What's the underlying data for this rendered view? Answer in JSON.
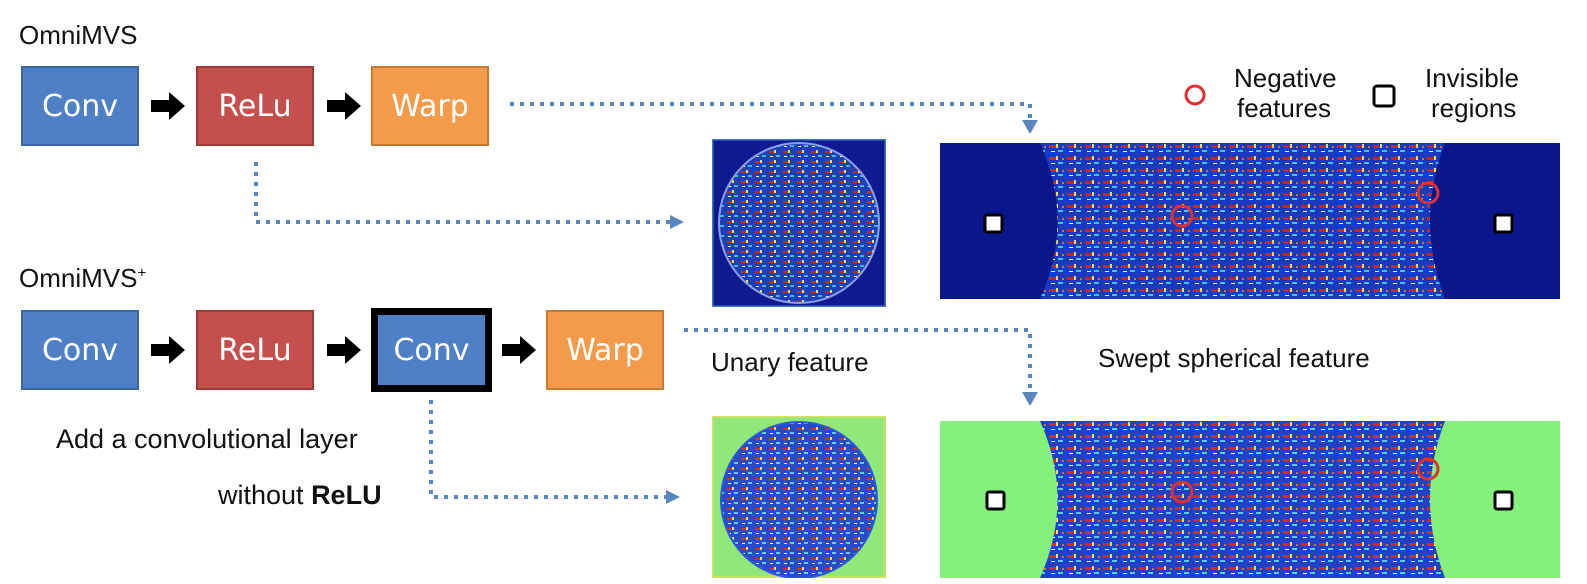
{
  "top_section": {
    "title": "OmniMVS",
    "blocks": [
      "Conv",
      "ReLu",
      "Warp"
    ]
  },
  "bottom_section": {
    "title": "OmniMVS",
    "title_superscript": "+",
    "blocks": [
      "Conv",
      "ReLu",
      "Conv",
      "Warp"
    ],
    "note_line1": "Add a convolutional layer",
    "note_line2_prefix": "without ",
    "note_line2_bold": "ReLU"
  },
  "captions": {
    "unary": "Unary feature",
    "swept": "Swept spherical feature"
  },
  "legend": {
    "negative_line1": "Negative",
    "negative_line2": "features",
    "invisible_line1": "Invisible",
    "invisible_line2": "regions",
    "negative_color": "#e03030",
    "invisible_color": "#000000"
  },
  "colors": {
    "conv": "#4f7fc4",
    "relu": "#c4504d",
    "warp": "#f39a4b",
    "connector": "#5a86c0",
    "top_background": "#0a168c",
    "bottom_background": "#86f07c"
  },
  "icons": [
    "right-arrow-icon",
    "dotted-arrow-icon",
    "red-circle-icon",
    "black-square-icon"
  ]
}
